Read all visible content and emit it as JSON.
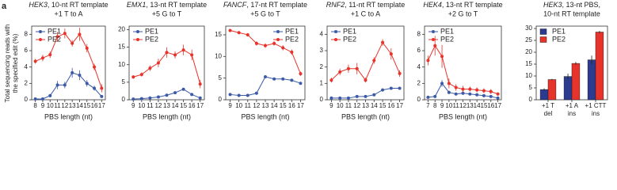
{
  "panel_label": "a",
  "ylabel": [
    "Total sequencing reads with",
    "the specified edit (%)"
  ],
  "chart_data": [
    {
      "type": "line",
      "gene": "HEK3",
      "title": [
        ", 10-nt RT template",
        "+1 T to A"
      ],
      "xlabel": "PBS length (nt)",
      "legend": "upper left",
      "x": [
        8,
        9,
        10,
        11,
        12,
        13,
        14,
        15,
        16,
        17
      ],
      "xlim": [
        7.5,
        17.5
      ],
      "xticks": [
        8,
        9,
        10,
        11,
        12,
        13,
        14,
        15,
        16,
        17
      ],
      "ylim": [
        0,
        9
      ],
      "yticks": [
        0,
        2,
        4,
        6,
        8
      ],
      "series": [
        {
          "name": "PE1",
          "color": "#3b5aa8",
          "values": [
            0.1,
            0.1,
            0.5,
            1.8,
            1.8,
            3.3,
            3.0,
            2.0,
            1.4,
            0.4
          ],
          "errors": [
            0.05,
            0.05,
            0.2,
            0.5,
            0.4,
            0.6,
            0.6,
            0.4,
            0.3,
            0.1
          ]
        },
        {
          "name": "PE2",
          "color": "#e8332b",
          "values": [
            4.7,
            5.1,
            5.5,
            7.7,
            8.1,
            6.9,
            8.0,
            6.3,
            4.0,
            1.4
          ],
          "errors": [
            0.3,
            0.4,
            0.4,
            0.6,
            0.6,
            0.4,
            0.8,
            0.5,
            0.4,
            0.5
          ]
        }
      ]
    },
    {
      "type": "line",
      "gene": "EMX1",
      "title": [
        ", 13-nt RT template",
        "+5 G to T"
      ],
      "xlabel": "PBS length (nt)",
      "legend": "upper left",
      "x": [
        9,
        10,
        11,
        12,
        13,
        14,
        15,
        16,
        17
      ],
      "xlim": [
        8.5,
        17.5
      ],
      "xticks": [
        9,
        10,
        11,
        12,
        13,
        14,
        15,
        16,
        17
      ],
      "ylim": [
        0,
        21
      ],
      "yticks": [
        0,
        5,
        10,
        15,
        20
      ],
      "series": [
        {
          "name": "PE1",
          "color": "#3b5aa8",
          "values": [
            0.2,
            0.3,
            0.5,
            0.8,
            1.3,
            2.0,
            3.0,
            1.5,
            0.5
          ],
          "errors": [
            0.1,
            0.1,
            0.1,
            0.2,
            0.2,
            0.3,
            0.3,
            0.2,
            0.1
          ]
        },
        {
          "name": "PE2",
          "color": "#e8332b",
          "values": [
            6.5,
            7.2,
            9.0,
            10.5,
            13.5,
            12.8,
            14.2,
            12.8,
            4.5
          ],
          "errors": [
            0.5,
            0.6,
            0.8,
            1.2,
            1.5,
            1.0,
            1.5,
            1.5,
            1.2
          ]
        }
      ]
    },
    {
      "type": "line",
      "gene": "FANCF",
      "title": [
        ", 17-nt RT template",
        "+5 G to T"
      ],
      "xlabel": "PBS length (nt)",
      "legend": "upper right",
      "x": [
        9,
        10,
        11,
        12,
        13,
        14,
        15,
        16,
        17
      ],
      "xlim": [
        8.5,
        17.5
      ],
      "xticks": [
        9,
        10,
        11,
        12,
        13,
        14,
        15,
        16,
        17
      ],
      "ylim": [
        0,
        17
      ],
      "yticks": [
        0,
        5,
        10,
        15
      ],
      "series": [
        {
          "name": "PE1",
          "color": "#3b5aa8",
          "values": [
            1.2,
            1.0,
            1.0,
            1.5,
            5.3,
            4.8,
            4.8,
            4.5,
            3.8
          ],
          "errors": [
            0.1,
            0.1,
            0.1,
            0.2,
            0.3,
            0.3,
            0.3,
            0.3,
            0.3
          ]
        },
        {
          "name": "PE2",
          "color": "#e8332b",
          "values": [
            16.0,
            15.5,
            15.0,
            13.0,
            12.5,
            13.0,
            12.0,
            11.0,
            6.0
          ],
          "errors": [
            0.3,
            0.3,
            0.4,
            0.5,
            0.5,
            0.5,
            0.6,
            0.6,
            0.5
          ]
        }
      ]
    },
    {
      "type": "line",
      "gene": "RNF2",
      "title": [
        ", 11-nt RT template",
        "+1 C to A"
      ],
      "xlabel": "PBS length (nt)",
      "legend": "upper left",
      "x": [
        9,
        10,
        11,
        12,
        13,
        14,
        15,
        16,
        17
      ],
      "xlim": [
        8.5,
        17.5
      ],
      "xticks": [
        9,
        10,
        11,
        12,
        13,
        14,
        15,
        16,
        17
      ],
      "ylim": [
        0,
        4.5
      ],
      "yticks": [
        0,
        1,
        2,
        3,
        4
      ],
      "series": [
        {
          "name": "PE1",
          "color": "#3b5aa8",
          "values": [
            0.1,
            0.1,
            0.1,
            0.2,
            0.2,
            0.3,
            0.6,
            0.7,
            0.7
          ],
          "errors": [
            0.02,
            0.02,
            0.02,
            0.03,
            0.03,
            0.05,
            0.08,
            0.08,
            0.08
          ]
        },
        {
          "name": "PE2",
          "color": "#e8332b",
          "values": [
            1.2,
            1.7,
            1.9,
            1.9,
            1.2,
            2.4,
            3.5,
            2.8,
            1.6
          ],
          "errors": [
            0.15,
            0.2,
            0.25,
            0.35,
            0.15,
            0.2,
            0.2,
            0.35,
            0.2
          ]
        }
      ]
    },
    {
      "type": "line",
      "gene": "HEK4",
      "title": [
        ", 13-nt RT template",
        "+2 G to T"
      ],
      "xlabel": "PBS length (nt)",
      "legend": "upper left",
      "x": [
        7,
        8,
        9,
        10,
        11,
        12,
        13,
        14,
        15,
        16,
        17
      ],
      "xlim": [
        6.5,
        17.5
      ],
      "xticks": [
        7,
        8,
        9,
        10,
        11,
        12,
        13,
        14,
        15,
        16,
        17
      ],
      "ylim": [
        0,
        9
      ],
      "yticks": [
        0,
        2,
        4,
        6,
        8
      ],
      "series": [
        {
          "name": "PE1",
          "color": "#3b5aa8",
          "values": [
            0.3,
            0.4,
            2.0,
            0.9,
            0.7,
            0.8,
            0.7,
            0.6,
            0.5,
            0.4,
            0.2
          ],
          "errors": [
            0.1,
            0.1,
            0.4,
            0.2,
            0.1,
            0.2,
            0.1,
            0.1,
            0.1,
            0.1,
            0.05
          ]
        },
        {
          "name": "PE2",
          "color": "#e8332b",
          "values": [
            4.8,
            6.6,
            5.3,
            2.0,
            1.5,
            1.3,
            1.3,
            1.2,
            1.1,
            1.0,
            0.7
          ],
          "errors": [
            0.6,
            1.2,
            1.4,
            0.6,
            0.4,
            0.4,
            0.3,
            0.3,
            0.3,
            0.3,
            0.2
          ]
        }
      ]
    },
    {
      "type": "bar",
      "gene": "HEK3",
      "title": [
        ", 13-nt PBS,",
        "10-nt RT template"
      ],
      "legend": "upper left",
      "categories": [
        [
          "+1 T",
          "del"
        ],
        [
          "+1 A",
          "ins"
        ],
        [
          "+1 CTT",
          "ins"
        ]
      ],
      "ylim": [
        0,
        31
      ],
      "yticks": [
        0,
        5,
        10,
        15,
        20,
        25,
        30
      ],
      "series": [
        {
          "name": "PE1",
          "color": "#2c3a8f",
          "values": [
            4.3,
            9.8,
            16.8
          ],
          "errors": [
            0.5,
            1.2,
            1.8
          ]
        },
        {
          "name": "PE2",
          "color": "#e8332b",
          "values": [
            8.5,
            15.3,
            28.5
          ],
          "errors": [
            0.3,
            0.6,
            0.5
          ]
        }
      ]
    }
  ]
}
